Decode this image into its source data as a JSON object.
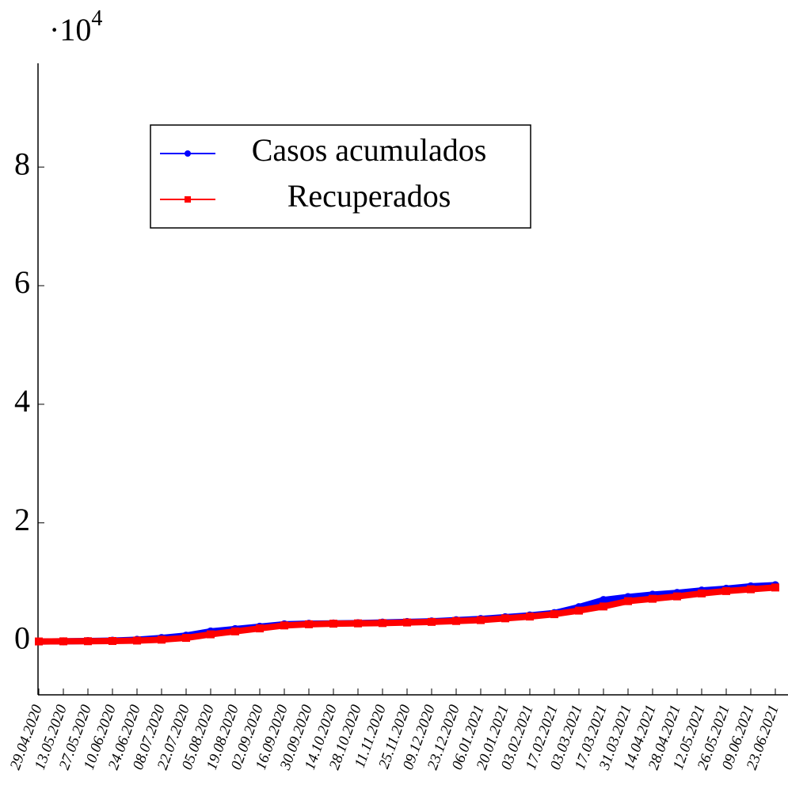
{
  "chart_data": {
    "type": "line",
    "y_scale": {
      "base": "·10",
      "exponent": "4"
    },
    "categories": [
      "29.04.2020",
      "13.05.2020",
      "27.05.2020",
      "10.06.2020",
      "24.06.2020",
      "08.07.2020",
      "22.07.2020",
      "05.08.2020",
      "19.08.2020",
      "02.09.2020",
      "16.09.2020",
      "30.09.2020",
      "14.10.2020",
      "28.10.2020",
      "11.11.2020",
      "25.11.2020",
      "09.12.2020",
      "23.12.2020",
      "06.01.2021",
      "20.01.2021",
      "03.02.2021",
      "17.02.2021",
      "03.03.2021",
      "17.03.2021",
      "31.03.2021",
      "14.04.2021",
      "28.04.2021",
      "12.05.2021",
      "26.05.2021",
      "09.06.2021",
      "23.06.2021"
    ],
    "series": [
      {
        "name": "Casos acumulados",
        "color": "#0000ff",
        "marker": "circle",
        "values": [
          0,
          30,
          70,
          150,
          300,
          600,
          1000,
          1700,
          2100,
          2500,
          2900,
          3000,
          3050,
          3100,
          3200,
          3300,
          3400,
          3600,
          3800,
          4100,
          4400,
          4800,
          5800,
          7000,
          7500,
          7900,
          8200,
          8600,
          8900,
          9300,
          9500
        ]
      },
      {
        "name": "Recuperados",
        "color": "#ff0000",
        "marker": "square",
        "values": [
          0,
          20,
          40,
          80,
          150,
          300,
          600,
          1200,
          1700,
          2200,
          2700,
          2900,
          3000,
          3050,
          3100,
          3200,
          3300,
          3450,
          3600,
          3900,
          4200,
          4600,
          5200,
          5900,
          6800,
          7200,
          7600,
          8100,
          8500,
          8800,
          9100
        ]
      }
    ],
    "ylim": [
      -9000,
      97500
    ],
    "yticks": [
      0,
      {
        "value": 20000,
        "label": "2"
      },
      {
        "value": 40000,
        "label": "4"
      },
      {
        "value": 60000,
        "label": "6"
      },
      {
        "value": 80000,
        "label": "8"
      }
    ],
    "legend": "top-left"
  }
}
